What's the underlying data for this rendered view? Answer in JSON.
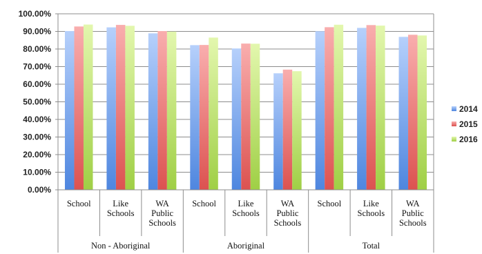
{
  "chart_data": {
    "type": "bar",
    "title": "",
    "xlabel": "",
    "ylabel": "",
    "ylim": [
      0,
      100
    ],
    "y_ticks": [
      "0.00%",
      "10.00%",
      "20.00%",
      "30.00%",
      "40.00%",
      "50.00%",
      "60.00%",
      "70.00%",
      "80.00%",
      "90.00%",
      "100.00%"
    ],
    "grid": true,
    "legend_position": "right",
    "groups": [
      {
        "label": "Non - Aboriginal",
        "categories": [
          [
            "School"
          ],
          [
            "Like",
            "Schools"
          ],
          [
            "WA",
            "Public",
            "Schools"
          ]
        ]
      },
      {
        "label": "Aboriginal",
        "categories": [
          [
            "School"
          ],
          [
            "Like",
            "Schools"
          ],
          [
            "WA",
            "Public",
            "Schools"
          ]
        ]
      },
      {
        "label": "Total",
        "categories": [
          [
            "School"
          ],
          [
            "Like",
            "Schools"
          ],
          [
            "WA",
            "Public",
            "Schools"
          ]
        ]
      }
    ],
    "series": [
      {
        "name": "2014",
        "color": "#6f9ce8",
        "values": [
          90.2,
          92.3,
          88.9,
          82.2,
          80.3,
          66.2,
          90.1,
          92.0,
          86.9
        ]
      },
      {
        "name": "2015",
        "color": "#ea6d6b",
        "values": [
          92.8,
          93.7,
          90.2,
          82.3,
          83.1,
          68.3,
          92.4,
          93.6,
          88.1
        ]
      },
      {
        "name": "2016",
        "color": "#b9e06a",
        "values": [
          93.9,
          93.2,
          89.9,
          86.5,
          83.0,
          67.4,
          93.8,
          93.3,
          87.7
        ]
      }
    ]
  }
}
